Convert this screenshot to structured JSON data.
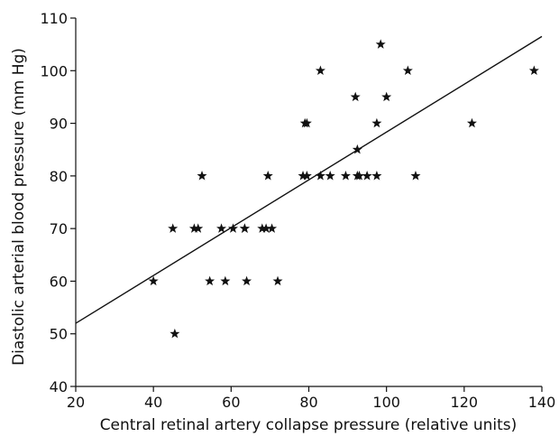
{
  "chart_data": {
    "type": "scatter",
    "title": "",
    "xlabel": "Central retinal artery collapse pressure (relative units)",
    "ylabel": "Diastolic arterial blood pressure (mm Hg)",
    "xlim": [
      20,
      140
    ],
    "ylim": [
      40,
      110
    ],
    "xticks": [
      "20",
      "40",
      "60",
      "80",
      "100",
      "120",
      "140"
    ],
    "yticks": [
      "40",
      "50",
      "60",
      "70",
      "80",
      "90",
      "100",
      "110"
    ],
    "grid": false,
    "marker": "star",
    "colors": {
      "marker": "#111111",
      "axis": "#111111",
      "line": "#111111"
    },
    "series": [
      {
        "points": [
          [
            40,
            60
          ],
          [
            45,
            70
          ],
          [
            45.5,
            50
          ],
          [
            50.5,
            70
          ],
          [
            51.5,
            70
          ],
          [
            52.5,
            80
          ],
          [
            54.5,
            60
          ],
          [
            57.5,
            70
          ],
          [
            58.5,
            60
          ],
          [
            60.5,
            70
          ],
          [
            63.5,
            70
          ],
          [
            63.5,
            70
          ],
          [
            64,
            60
          ],
          [
            68,
            70
          ],
          [
            69,
            70
          ],
          [
            69.5,
            80
          ],
          [
            70.5,
            70
          ],
          [
            72,
            60
          ],
          [
            78.5,
            80
          ],
          [
            79,
            90
          ],
          [
            79.5,
            80
          ],
          [
            79.5,
            90
          ],
          [
            83,
            80
          ],
          [
            83,
            100
          ],
          [
            85.5,
            80
          ],
          [
            89.5,
            80
          ],
          [
            92,
            95
          ],
          [
            92.5,
            80
          ],
          [
            93,
            80
          ],
          [
            92.5,
            85
          ],
          [
            95,
            80
          ],
          [
            97.5,
            90
          ],
          [
            97.5,
            80
          ],
          [
            98.5,
            105
          ],
          [
            100,
            95
          ],
          [
            105.5,
            100
          ],
          [
            107.5,
            80
          ],
          [
            122,
            90
          ],
          [
            138,
            100
          ]
        ]
      }
    ],
    "regression_line": {
      "x": [
        20,
        140
      ],
      "y": [
        52,
        106.5
      ]
    }
  }
}
